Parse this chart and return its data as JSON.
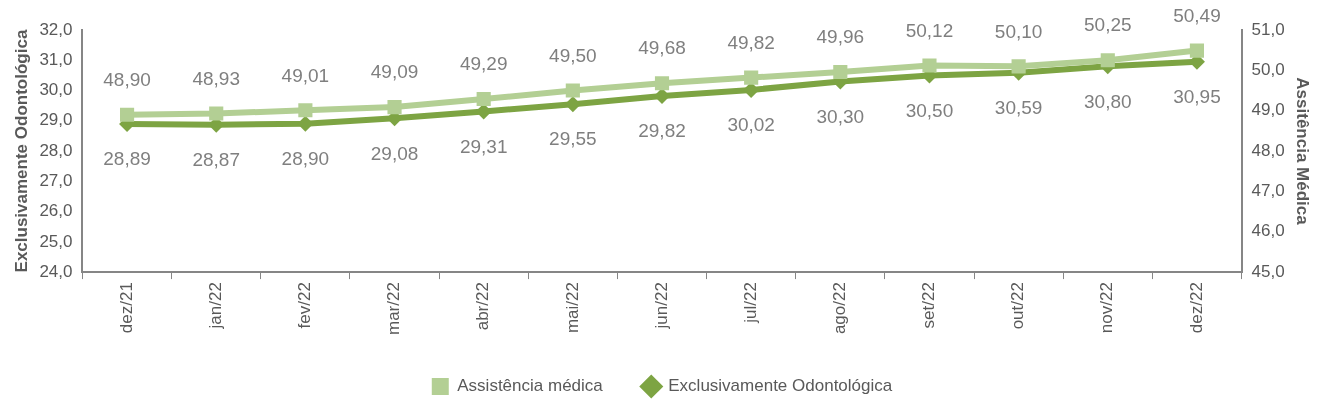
{
  "chart_data": {
    "type": "line",
    "ylabel": "Exclusivamente Odontológica",
    "y2label": "Assitência Médica",
    "categories": [
      "dez/21",
      "jan/22",
      "fev/22",
      "mar/22",
      "abr/22",
      "mai/22",
      "jun/22",
      "jul/22",
      "ago/22",
      "set/22",
      "out/22",
      "nov/22",
      "dez/22"
    ],
    "series": [
      {
        "name": "Assistência médica",
        "color": "#b3cf94",
        "axis": "y2",
        "marker": "square",
        "values": [
          48.9,
          48.93,
          49.01,
          49.09,
          49.29,
          49.5,
          49.68,
          49.82,
          49.96,
          50.12,
          50.1,
          50.25,
          50.49
        ],
        "value_labels": [
          "48,90",
          "48,93",
          "49,01",
          "49,09",
          "49,29",
          "49,50",
          "49,68",
          "49,82",
          "49,96",
          "50,12",
          "50,10",
          "50,25",
          "50,49"
        ]
      },
      {
        "name": "Exclusivamente Odontológica",
        "color": "#7da443",
        "axis": "y",
        "marker": "diamond",
        "values": [
          28.89,
          28.87,
          28.9,
          29.08,
          29.31,
          29.55,
          29.82,
          30.02,
          30.3,
          30.5,
          30.59,
          30.8,
          30.95
        ],
        "value_labels": [
          "28,89",
          "28,87",
          "28,90",
          "29,08",
          "29,31",
          "29,55",
          "29,82",
          "30,02",
          "30,30",
          "30,50",
          "30,59",
          "30,80",
          "30,95"
        ]
      }
    ],
    "ylim": [
      24,
      32
    ],
    "yticks": [
      {
        "value": 24,
        "label": "24,0"
      },
      {
        "value": 25,
        "label": "25,0"
      },
      {
        "value": 26,
        "label": "26,0"
      },
      {
        "value": 27,
        "label": "27,0"
      },
      {
        "value": 28,
        "label": "28,0"
      },
      {
        "value": 29,
        "label": "29,0"
      },
      {
        "value": 30,
        "label": "30,0"
      },
      {
        "value": 31,
        "label": "31,0"
      },
      {
        "value": 32,
        "label": "32,0"
      }
    ],
    "y2lim": [
      45,
      51
    ],
    "y2ticks": [
      {
        "value": 45,
        "label": "45,0"
      },
      {
        "value": 46,
        "label": "46,0"
      },
      {
        "value": 47,
        "label": "47,0"
      },
      {
        "value": 48,
        "label": "48,0"
      },
      {
        "value": 49,
        "label": "49,0"
      },
      {
        "value": 50,
        "label": "50,0"
      },
      {
        "value": 51,
        "label": "51,0"
      }
    ],
    "grid": false,
    "legend": "bottom",
    "line_style": "solid"
  }
}
